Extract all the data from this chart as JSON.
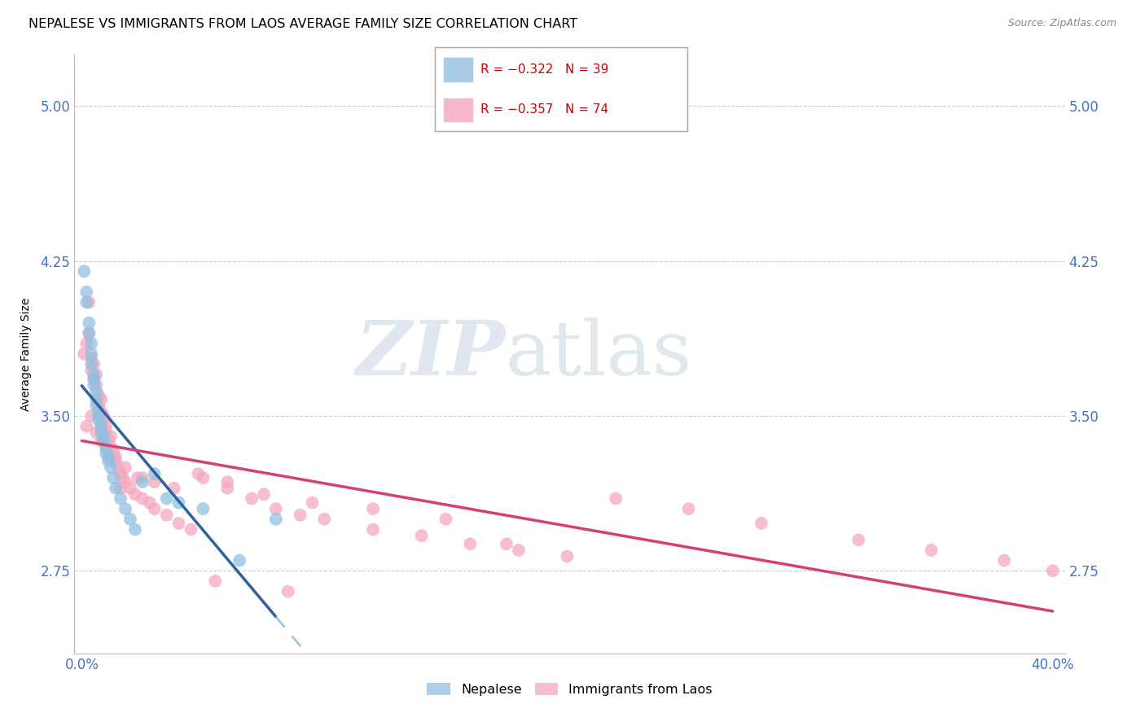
{
  "title": "NEPALESE VS IMMIGRANTS FROM LAOS AVERAGE FAMILY SIZE CORRELATION CHART",
  "source": "Source: ZipAtlas.com",
  "ylabel": "Average Family Size",
  "yticks": [
    2.75,
    3.5,
    4.25,
    5.0
  ],
  "xlim": [
    0.0,
    0.4
  ],
  "ylim": [
    2.35,
    5.25
  ],
  "legend_blue_r": "R = −0.322",
  "legend_blue_n": "N = 39",
  "legend_pink_r": "R = −0.357",
  "legend_pink_n": "N = 74",
  "label_blue": "Nepalese",
  "label_pink": "Immigrants from Laos",
  "blue_color": "#92c0e0",
  "pink_color": "#f4a8be",
  "blue_line_color": "#3060a0",
  "pink_line_color": "#d44070",
  "background_color": "#ffffff",
  "grid_color": "#cccccc",
  "title_fontsize": 11.5,
  "axis_label_fontsize": 10,
  "tick_fontsize": 12,
  "tick_color": "#4472c4",
  "source_fontsize": 9,
  "source_color": "#888888",
  "nepalese_x": [
    0.001,
    0.002,
    0.002,
    0.003,
    0.003,
    0.004,
    0.004,
    0.004,
    0.005,
    0.005,
    0.005,
    0.006,
    0.006,
    0.006,
    0.007,
    0.007,
    0.007,
    0.008,
    0.008,
    0.009,
    0.009,
    0.01,
    0.01,
    0.011,
    0.011,
    0.012,
    0.013,
    0.014,
    0.016,
    0.018,
    0.02,
    0.022,
    0.025,
    0.03,
    0.035,
    0.04,
    0.05,
    0.065,
    0.08
  ],
  "nepalese_y": [
    4.2,
    4.1,
    4.05,
    3.9,
    3.95,
    3.85,
    3.8,
    3.75,
    3.7,
    3.68,
    3.65,
    3.62,
    3.58,
    3.55,
    3.52,
    3.5,
    3.48,
    3.45,
    3.42,
    3.4,
    3.38,
    3.35,
    3.32,
    3.3,
    3.28,
    3.25,
    3.2,
    3.15,
    3.1,
    3.05,
    3.0,
    2.95,
    3.18,
    3.22,
    3.1,
    3.08,
    3.05,
    2.8,
    3.0
  ],
  "laos_x": [
    0.001,
    0.002,
    0.003,
    0.003,
    0.004,
    0.004,
    0.005,
    0.005,
    0.006,
    0.006,
    0.007,
    0.007,
    0.008,
    0.008,
    0.009,
    0.009,
    0.01,
    0.01,
    0.011,
    0.012,
    0.012,
    0.013,
    0.014,
    0.015,
    0.016,
    0.017,
    0.018,
    0.02,
    0.022,
    0.025,
    0.028,
    0.03,
    0.035,
    0.04,
    0.045,
    0.05,
    0.06,
    0.07,
    0.08,
    0.09,
    0.1,
    0.12,
    0.14,
    0.16,
    0.18,
    0.2,
    0.22,
    0.25,
    0.28,
    0.32,
    0.35,
    0.38,
    0.4,
    0.002,
    0.004,
    0.006,
    0.008,
    0.01,
    0.014,
    0.018,
    0.023,
    0.03,
    0.038,
    0.048,
    0.06,
    0.075,
    0.095,
    0.12,
    0.15,
    0.175,
    0.016,
    0.025,
    0.055,
    0.085
  ],
  "laos_y": [
    3.8,
    3.85,
    4.05,
    3.9,
    3.78,
    3.72,
    3.75,
    3.68,
    3.65,
    3.7,
    3.6,
    3.55,
    3.58,
    3.52,
    3.48,
    3.5,
    3.45,
    3.42,
    3.38,
    3.4,
    3.35,
    3.32,
    3.28,
    3.25,
    3.22,
    3.2,
    3.18,
    3.15,
    3.12,
    3.1,
    3.08,
    3.05,
    3.02,
    2.98,
    2.95,
    3.2,
    3.15,
    3.1,
    3.05,
    3.02,
    3.0,
    2.95,
    2.92,
    2.88,
    2.85,
    2.82,
    3.1,
    3.05,
    2.98,
    2.9,
    2.85,
    2.8,
    2.75,
    3.45,
    3.5,
    3.42,
    3.38,
    3.35,
    3.3,
    3.25,
    3.2,
    3.18,
    3.15,
    3.22,
    3.18,
    3.12,
    3.08,
    3.05,
    3.0,
    2.88,
    3.15,
    3.2,
    2.7,
    2.65
  ]
}
